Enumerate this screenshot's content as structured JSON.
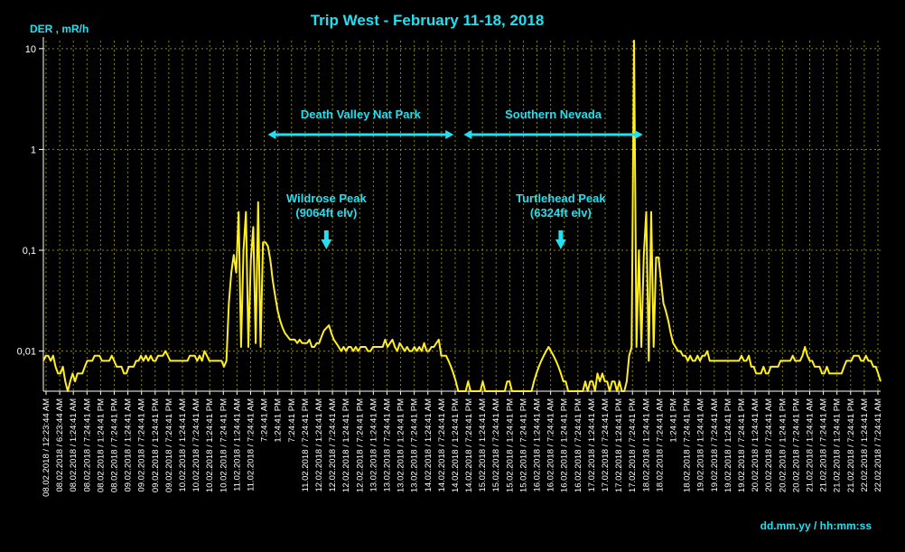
{
  "chart_data": {
    "type": "line",
    "title": "Trip West - February 11-18, 2018",
    "ylabel": "DER , mR/h",
    "xlabel": "dd.mm.yy / hh:mm:ss",
    "y_scale": "log",
    "ylim": [
      0.004,
      12
    ],
    "y_ticks": [
      {
        "value": 10,
        "label": "10"
      },
      {
        "value": 1,
        "label": "1"
      },
      {
        "value": 0.1,
        "label": "0,1"
      },
      {
        "value": 0.01,
        "label": "0,01"
      }
    ],
    "grid": true,
    "line_color": "#ffee22",
    "annotation_color": "#22e0f0",
    "x_tick_labels": [
      "08.02.2018 / 12:23:44 AM",
      "08.02.2018 / 6:23:44 AM",
      "08.02.2018 / 1:24:41 AM",
      "08.02.2018 / 7:24:41 AM",
      "08.02.2018 / 1:24:41 PM",
      "08.02.2018 / 7:24:41 PM",
      "09.02.2018 / 1:24:41 AM",
      "09.02.2018 / 7:24:41 AM",
      "09.02.2018 / 1:24:41 PM",
      "09.02.2018 / 7:24:41 PM",
      "10.02.2018 / 1:24:41 AM",
      "10.02.2018 / 7:24:41 AM",
      "10.02.2018 / 1:24:41 PM",
      "10.02.2018 / 7:24:41 PM",
      "11.02.2018 / 1:24:41 AM",
      "11.02.2018 / 7:24:41 AM",
      "7:24:41 AM",
      "1:24:41 PM",
      "7:24:41 PM",
      "11.02.2018 / 7:24:41 PM",
      "12.02.2018 / 1:24:41 AM",
      "12.02.2018 / 7:24:41 AM",
      "12.02.2018 / 1:24:41 PM",
      "12.02.2018 / 7:24:41 PM",
      "13.02.2018 / 1:24:41 AM",
      "13.02.2018 / 7:24:41 AM",
      "13.02.2018 / 1:24:41 PM",
      "13.02.2018 / 7:24:41 PM",
      "14.02.2018 / 1:24:41 AM",
      "14.02.2018 / 7:24:41 AM",
      "14.02.2018 / 1:24:41 PM",
      "14.02.2018 / 7:24:41 PM",
      "15.02.2018 / 1:24:41 AM",
      "15.02.2018 / 7:24:41 AM",
      "15.02.2018 / 1:24:41 PM",
      "15.02.2018 / 7:24:41 PM",
      "16.02.2018 / 1:24:41 AM",
      "16.02.2018 / 7:24:41 AM",
      "16.02.2018 / 1:24:41 PM",
      "16.02.2018 / 7:24:41 PM",
      "17.02.2018 / 1:24:41 AM",
      "17.02.2018 / 7:24:41 AM",
      "17.02.2018 / 1:24:41 PM",
      "17.02.2018 / 7:24:41 PM",
      "18.02.2018 / 1:24:41 AM",
      "18.02.2018 / 7:24:41 AM",
      "1:24:41 PM",
      "18.02.2018 / 7:24:41 PM",
      "19.02.2018 / 1:24:41 AM",
      "19.02.2018 / 7:24:41 AM",
      "19.02.2018 / 1:24:41 PM",
      "19.02.2018 / 7:24:41 PM",
      "20.02.2018 / 1:24:41 AM",
      "20.02.2018 / 7:24:41 AM",
      "20.02.2018 / 1:24:41 PM",
      "20.02.2018 / 7:24:41 PM",
      "21.02.2018 / 1:24:41 AM",
      "21.02.2018 / 7:24:41 AM",
      "21.02.2018 / 1:24:41 PM",
      "21.02.2018 / 7:24:41 PM",
      "22.02.2018 / 1:24:41 AM",
      "22.02.2018 / 7:24:41 AM"
    ],
    "series": [
      {
        "values": [
          0.008,
          0.009,
          0.009,
          0.008,
          0.009,
          0.007,
          0.006,
          0.006,
          0.007,
          0.005,
          0.004,
          0.005,
          0.006,
          0.005,
          0.006,
          0.006,
          0.006,
          0.007,
          0.008,
          0.008,
          0.008,
          0.009,
          0.009,
          0.009,
          0.008,
          0.008,
          0.008,
          0.008,
          0.009,
          0.008,
          0.007,
          0.007,
          0.007,
          0.006,
          0.006,
          0.007,
          0.007,
          0.007,
          0.008,
          0.008,
          0.009,
          0.008,
          0.009,
          0.008,
          0.009,
          0.008,
          0.008,
          0.009,
          0.009,
          0.009,
          0.01,
          0.009,
          0.008,
          0.008,
          0.008,
          0.008,
          0.008,
          0.008,
          0.008,
          0.008,
          0.009,
          0.009,
          0.009,
          0.008,
          0.009,
          0.008,
          0.01,
          0.009,
          0.008,
          0.008,
          0.008,
          0.008,
          0.008,
          0.008,
          0.007,
          0.008,
          0.03,
          0.06,
          0.09,
          0.06,
          0.24,
          0.011,
          0.1,
          0.24,
          0.011,
          0.08,
          0.17,
          0.012,
          0.3,
          0.011,
          0.12,
          0.12,
          0.11,
          0.08,
          0.05,
          0.035,
          0.025,
          0.02,
          0.017,
          0.015,
          0.014,
          0.013,
          0.013,
          0.013,
          0.012,
          0.013,
          0.012,
          0.012,
          0.012,
          0.013,
          0.011,
          0.011,
          0.012,
          0.012,
          0.014,
          0.016,
          0.017,
          0.018,
          0.015,
          0.013,
          0.012,
          0.011,
          0.01,
          0.011,
          0.01,
          0.011,
          0.011,
          0.01,
          0.011,
          0.01,
          0.011,
          0.011,
          0.011,
          0.01,
          0.01,
          0.011,
          0.011,
          0.011,
          0.011,
          0.011,
          0.013,
          0.011,
          0.012,
          0.013,
          0.011,
          0.01,
          0.012,
          0.011,
          0.01,
          0.011,
          0.01,
          0.01,
          0.011,
          0.01,
          0.011,
          0.01,
          0.012,
          0.01,
          0.01,
          0.011,
          0.011,
          0.012,
          0.013,
          0.009,
          0.009,
          0.009,
          0.008,
          0.007,
          0.006,
          0.005,
          0.004,
          0.004,
          0.004,
          0.004,
          0.005,
          0.004,
          0.004,
          0.004,
          0.004,
          0.004,
          0.005,
          0.004,
          0.004,
          0.004,
          0.004,
          0.004,
          0.004,
          0.004,
          0.004,
          0.004,
          0.005,
          0.005,
          0.004,
          0.004,
          0.004,
          0.004,
          0.004,
          0.004,
          0.004,
          0.004,
          0.004,
          0.005,
          0.006,
          0.007,
          0.008,
          0.009,
          0.01,
          0.011,
          0.01,
          0.009,
          0.008,
          0.007,
          0.006,
          0.005,
          0.005,
          0.004,
          0.004,
          0.004,
          0.004,
          0.004,
          0.004,
          0.004,
          0.005,
          0.004,
          0.005,
          0.005,
          0.004,
          0.006,
          0.005,
          0.006,
          0.005,
          0.005,
          0.004,
          0.005,
          0.005,
          0.004,
          0.005,
          0.004,
          0.004,
          0.005,
          0.009,
          0.011,
          12.0,
          0.011,
          0.1,
          0.011,
          0.09,
          0.24,
          0.008,
          0.24,
          0.011,
          0.085,
          0.085,
          0.05,
          0.03,
          0.025,
          0.02,
          0.015,
          0.012,
          0.011,
          0.01,
          0.01,
          0.009,
          0.009,
          0.008,
          0.009,
          0.008,
          0.008,
          0.009,
          0.008,
          0.009,
          0.009,
          0.01,
          0.008,
          0.008,
          0.008,
          0.008,
          0.008,
          0.008,
          0.008,
          0.008,
          0.008,
          0.008,
          0.008,
          0.008,
          0.008,
          0.009,
          0.008,
          0.008,
          0.009,
          0.007,
          0.007,
          0.006,
          0.006,
          0.006,
          0.007,
          0.006,
          0.006,
          0.007,
          0.007,
          0.007,
          0.007,
          0.008,
          0.008,
          0.008,
          0.008,
          0.008,
          0.009,
          0.008,
          0.008,
          0.008,
          0.009,
          0.011,
          0.009,
          0.008,
          0.008,
          0.007,
          0.007,
          0.007,
          0.006,
          0.006,
          0.007,
          0.006,
          0.006,
          0.006,
          0.006,
          0.006,
          0.006,
          0.007,
          0.008,
          0.008,
          0.008,
          0.009,
          0.009,
          0.009,
          0.008,
          0.008,
          0.009,
          0.008,
          0.008,
          0.007,
          0.007,
          0.006,
          0.005
        ]
      }
    ],
    "annotations": [
      {
        "id": "death-valley",
        "label": "Death Valley Nat Park",
        "kind": "range",
        "from": 0.268,
        "to": 0.49
      },
      {
        "id": "southern-nevada",
        "label": "Southern Nevada",
        "kind": "range",
        "from": 0.502,
        "to": 0.716
      },
      {
        "id": "wildrose",
        "label_lines": [
          "Wildrose Peak",
          "(9064ft elv)"
        ],
        "kind": "point",
        "at": 0.338,
        "value": 0.017
      },
      {
        "id": "turtlehead",
        "label_lines": [
          "Turtlehead Peak",
          "(6324ft elv)"
        ],
        "kind": "point",
        "at": 0.618,
        "value": 0.011
      }
    ]
  }
}
